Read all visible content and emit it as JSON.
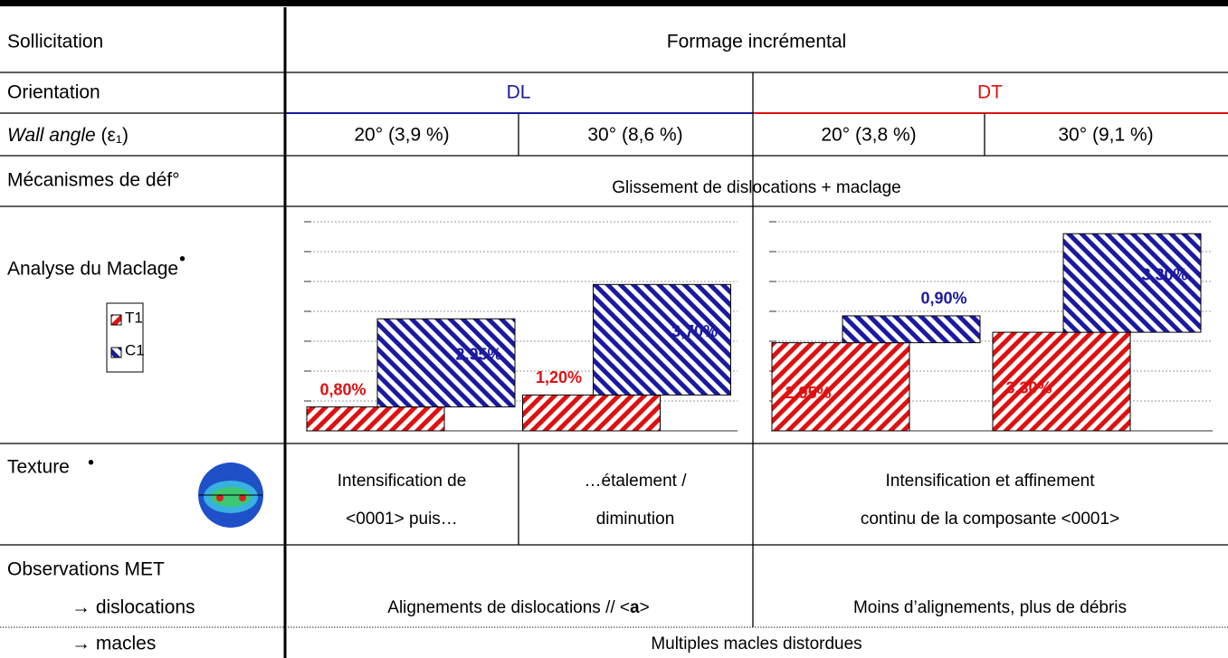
{
  "sollicitation": {
    "label": "Sollicitation",
    "value": "Formage incrémental"
  },
  "orientation": {
    "label": "Orientation",
    "dl": "DL",
    "dt": "DT"
  },
  "wall_angle": {
    "label": "Wall angle",
    "symbol": "(ε₁)",
    "cells": [
      "20° (3,9 %)",
      "30° (8,6 %)",
      "20° (3,8 %)",
      "30° (9,1 %)"
    ]
  },
  "mecanismes": {
    "label": "Mécanismes de déf°",
    "value": "Glissement de dislocations + maclage"
  },
  "maclage": {
    "label": "Analyse du Maclage",
    "mark": "•",
    "legend": [
      {
        "name": "T1",
        "color": "#e01010"
      },
      {
        "name": "C1",
        "color": "#1a1aa0"
      }
    ],
    "ylim": [
      0,
      7
    ],
    "yticks": [
      1,
      2,
      3,
      4,
      5,
      6,
      7
    ],
    "charts": [
      {
        "series": [
          {
            "values": [
              0.8,
              1.2
            ],
            "value_labels": [
              "0,80%",
              "1,20%"
            ]
          },
          {
            "values": [
              2.95,
              3.7
            ],
            "value_labels": [
              "2,95%",
              "3,70%"
            ]
          }
        ]
      },
      {
        "series": [
          {
            "values": [
              2.95,
              3.3
            ],
            "value_labels": [
              "2,95%",
              "3,30%"
            ]
          },
          {
            "values": [
              0.9,
              3.3
            ],
            "value_labels": [
              "0,90%",
              "3,30%"
            ]
          }
        ]
      }
    ]
  },
  "texture": {
    "label": "Texture",
    "mark": "•",
    "dl1": [
      "Intensification de",
      "<0001> puis…"
    ],
    "dl2": [
      "…étalement /",
      "diminution"
    ],
    "dt": [
      "Intensification et affinement",
      "continu de la composante <0001>"
    ]
  },
  "met": {
    "label": "Observations MET",
    "dislocations": {
      "label": "→ dislocations",
      "dl": [
        "Alignements de dislocations // <",
        "a",
        ">"
      ],
      "dt": "Moins d’alignements, plus de débris"
    },
    "macles": {
      "label": "→ macles",
      "value": "Multiples macles distordues"
    }
  }
}
